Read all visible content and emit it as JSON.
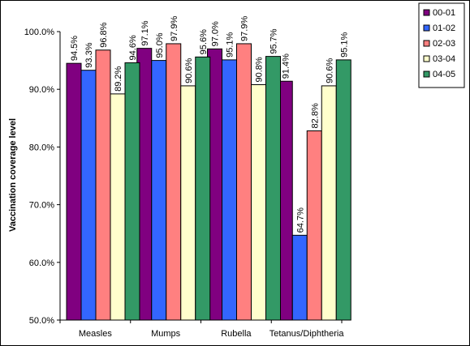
{
  "chart_data": {
    "type": "bar",
    "title": "",
    "xlabel": "",
    "ylabel": "Vaccination coverage level",
    "ylim": [
      50,
      100
    ],
    "yticks": [
      "50.0%",
      "60.0%",
      "70.0%",
      "80.0%",
      "90.0%",
      "100.0%"
    ],
    "ytick_values": [
      50,
      60,
      70,
      80,
      90,
      100
    ],
    "categories": [
      "Measles",
      "Mumps",
      "Rubella",
      "Tetanus/Diphtheria"
    ],
    "legend_position": "top-right",
    "grid": false,
    "series": [
      {
        "name": "00-01",
        "color": "#800080",
        "values": [
          94.5,
          97.1,
          97.0,
          91.4
        ],
        "labels": [
          "94.5%",
          "97.1%",
          "97.0%",
          "91.4%"
        ]
      },
      {
        "name": "01-02",
        "color": "#3366FF",
        "values": [
          93.3,
          95.0,
          95.1,
          64.7
        ],
        "labels": [
          "93.3%",
          "95.0%",
          "95.1%",
          "64.7%"
        ]
      },
      {
        "name": "02-03",
        "color": "#FF8080",
        "values": [
          96.8,
          97.9,
          97.9,
          82.8
        ],
        "labels": [
          "96.8%",
          "97.9%",
          "97.9%",
          "82.8%"
        ]
      },
      {
        "name": "03-04",
        "color": "#FFFFCC",
        "values": [
          89.2,
          90.6,
          90.8,
          90.6
        ],
        "labels": [
          "89.2%",
          "90.6%",
          "90.8%",
          "90.6%"
        ]
      },
      {
        "name": "04-05",
        "color": "#339966",
        "values": [
          94.6,
          95.6,
          95.7,
          95.1
        ],
        "labels": [
          "94.6%",
          "95.6%",
          "95.7%",
          "95.1%"
        ]
      }
    ]
  }
}
